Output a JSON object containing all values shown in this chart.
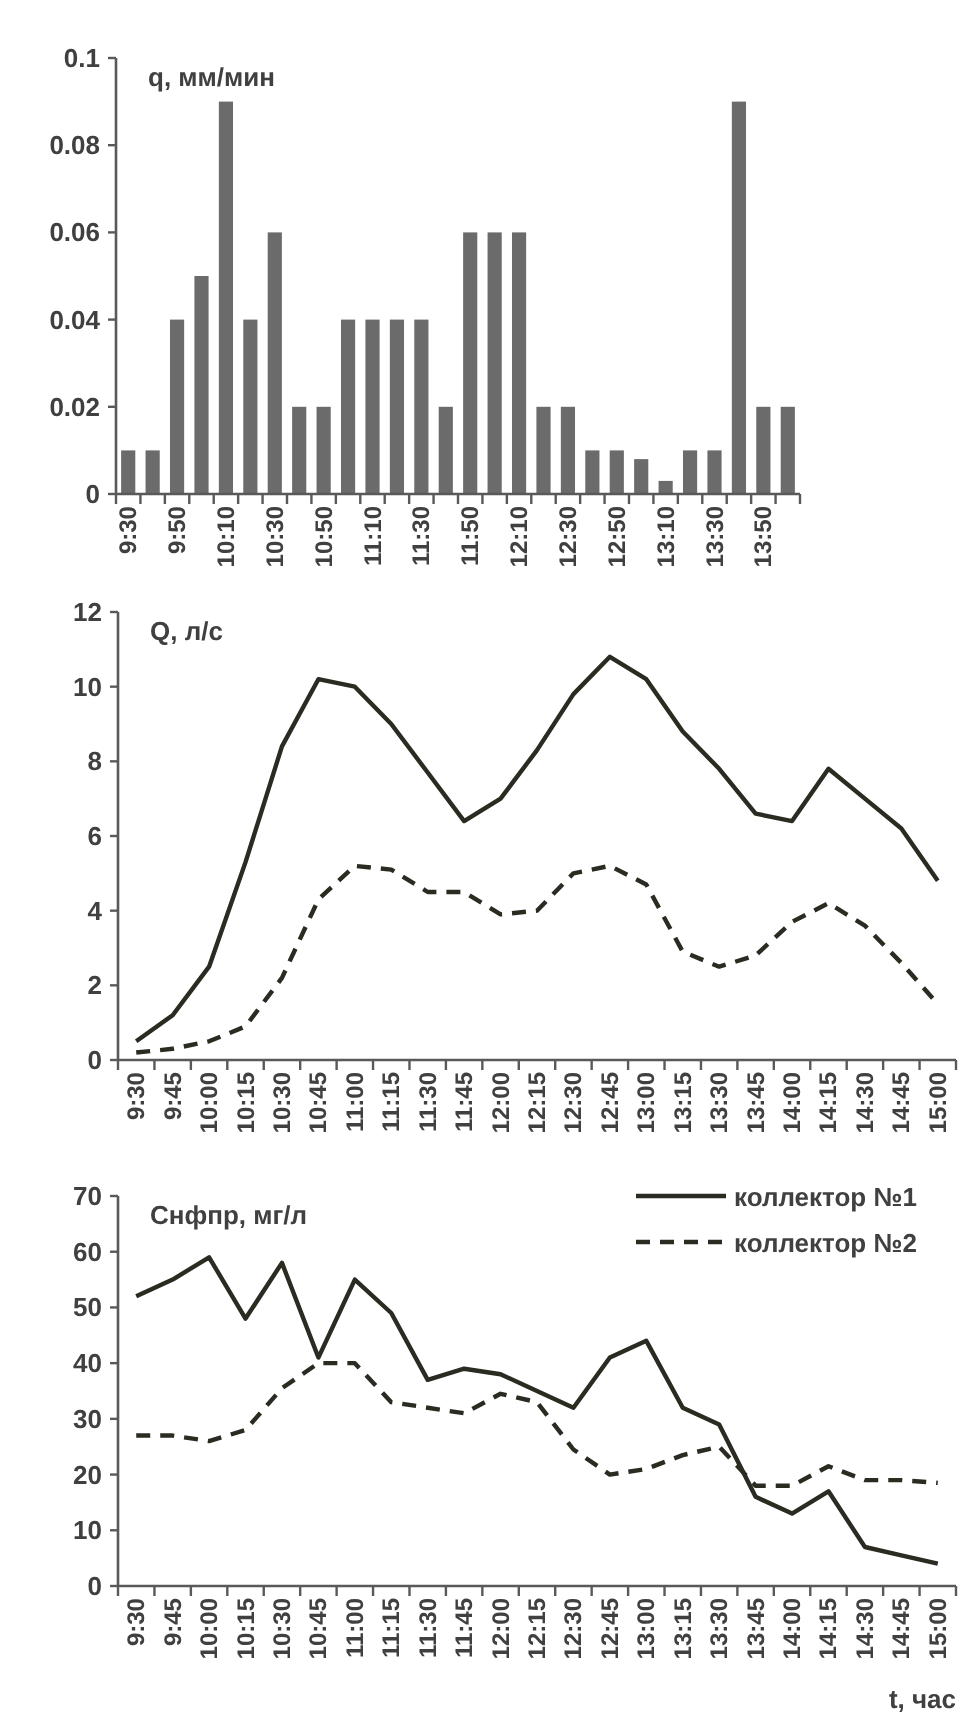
{
  "chart_data": [
    {
      "type": "bar",
      "ylabel": "q, мм/мин",
      "categories": [
        "9:30",
        null,
        "9:50",
        null,
        "10:10",
        null,
        "10:30",
        null,
        "10:50",
        null,
        "11:10",
        null,
        "11:30",
        null,
        "11:50",
        null,
        "12:10",
        null,
        "12:30",
        null,
        "12:50",
        null,
        "13:10",
        null,
        "13:30",
        null,
        "13:50",
        null
      ],
      "values": [
        0.01,
        0.01,
        0.04,
        0.05,
        0.09,
        0.04,
        0.06,
        0.02,
        0.02,
        0.04,
        0.04,
        0.04,
        0.04,
        0.02,
        0.06,
        0.06,
        0.06,
        0.02,
        0.02,
        0.01,
        0.01,
        0.008,
        0.003,
        0.01,
        0.01,
        0.09,
        0.02,
        0.02
      ],
      "color": "#6b6b6b",
      "ylim": [
        0,
        0.1
      ],
      "yticks": [
        0,
        0.02,
        0.04,
        0.06,
        0.08,
        0.1
      ]
    },
    {
      "type": "line",
      "ylabel": "Q, л/с",
      "categories": [
        "9:30",
        "9:45",
        "10:00",
        "10:15",
        "10:30",
        "10:45",
        "11:00",
        "11:15",
        "11:30",
        "11:45",
        "12:00",
        "12:15",
        "12:30",
        "12:45",
        "13:00",
        "13:15",
        "13:30",
        "13:45",
        "14:00",
        "14:15",
        "14:30",
        "14:45",
        "15:00"
      ],
      "series": [
        {
          "color": "#2b2b22",
          "line_style": "solid",
          "values": [
            0.5,
            1.2,
            2.5,
            5.3,
            8.4,
            10.2,
            10.0,
            9.0,
            7.7,
            6.4,
            7.0,
            8.3,
            9.8,
            10.8,
            10.2,
            8.8,
            7.8,
            6.6,
            6.4,
            7.8,
            7.0,
            6.2,
            4.8
          ]
        },
        {
          "color": "#2b2b22",
          "line_style": "dashed",
          "values": [
            0.2,
            0.3,
            0.5,
            0.9,
            2.2,
            4.3,
            5.2,
            5.1,
            4.5,
            4.5,
            3.9,
            4.0,
            5.0,
            5.2,
            4.7,
            2.9,
            2.5,
            2.8,
            3.7,
            4.2,
            3.6,
            2.6,
            1.5
          ]
        }
      ],
      "ylim": [
        0,
        12
      ],
      "yticks": [
        0,
        2,
        4,
        6,
        8,
        10,
        12
      ]
    },
    {
      "type": "line",
      "ylabel": "Снфпр, мг/л",
      "xlabel": "t, час",
      "categories": [
        "9:30",
        "9:45",
        "10:00",
        "10:15",
        "10:30",
        "10:45",
        "11:00",
        "11:15",
        "11:30",
        "11:45",
        "12:00",
        "12:15",
        "12:30",
        "12:45",
        "13:00",
        "13:15",
        "13:30",
        "13:45",
        "14:00",
        "14:15",
        "14:30",
        "14:45",
        "15:00"
      ],
      "series": [
        {
          "name": "коллектор №1",
          "color": "#2b2b22",
          "line_style": "solid",
          "values": [
            52,
            55,
            59,
            48,
            58,
            41,
            55,
            49,
            37,
            39,
            38,
            35,
            32,
            41,
            44,
            32,
            29,
            16,
            13,
            17,
            7,
            5.5,
            4
          ]
        },
        {
          "name": "коллектор №2",
          "color": "#2b2b22",
          "line_style": "dashed",
          "values": [
            27,
            27,
            26,
            28,
            35.5,
            40,
            40,
            33,
            32,
            31,
            34.5,
            33,
            24.5,
            20,
            21,
            23.5,
            25,
            18,
            18,
            21.5,
            19,
            19,
            18.5
          ]
        }
      ],
      "ylim": [
        0,
        70
      ],
      "yticks": [
        0,
        10,
        20,
        30,
        40,
        50,
        60,
        70
      ],
      "legend": "top right"
    }
  ]
}
